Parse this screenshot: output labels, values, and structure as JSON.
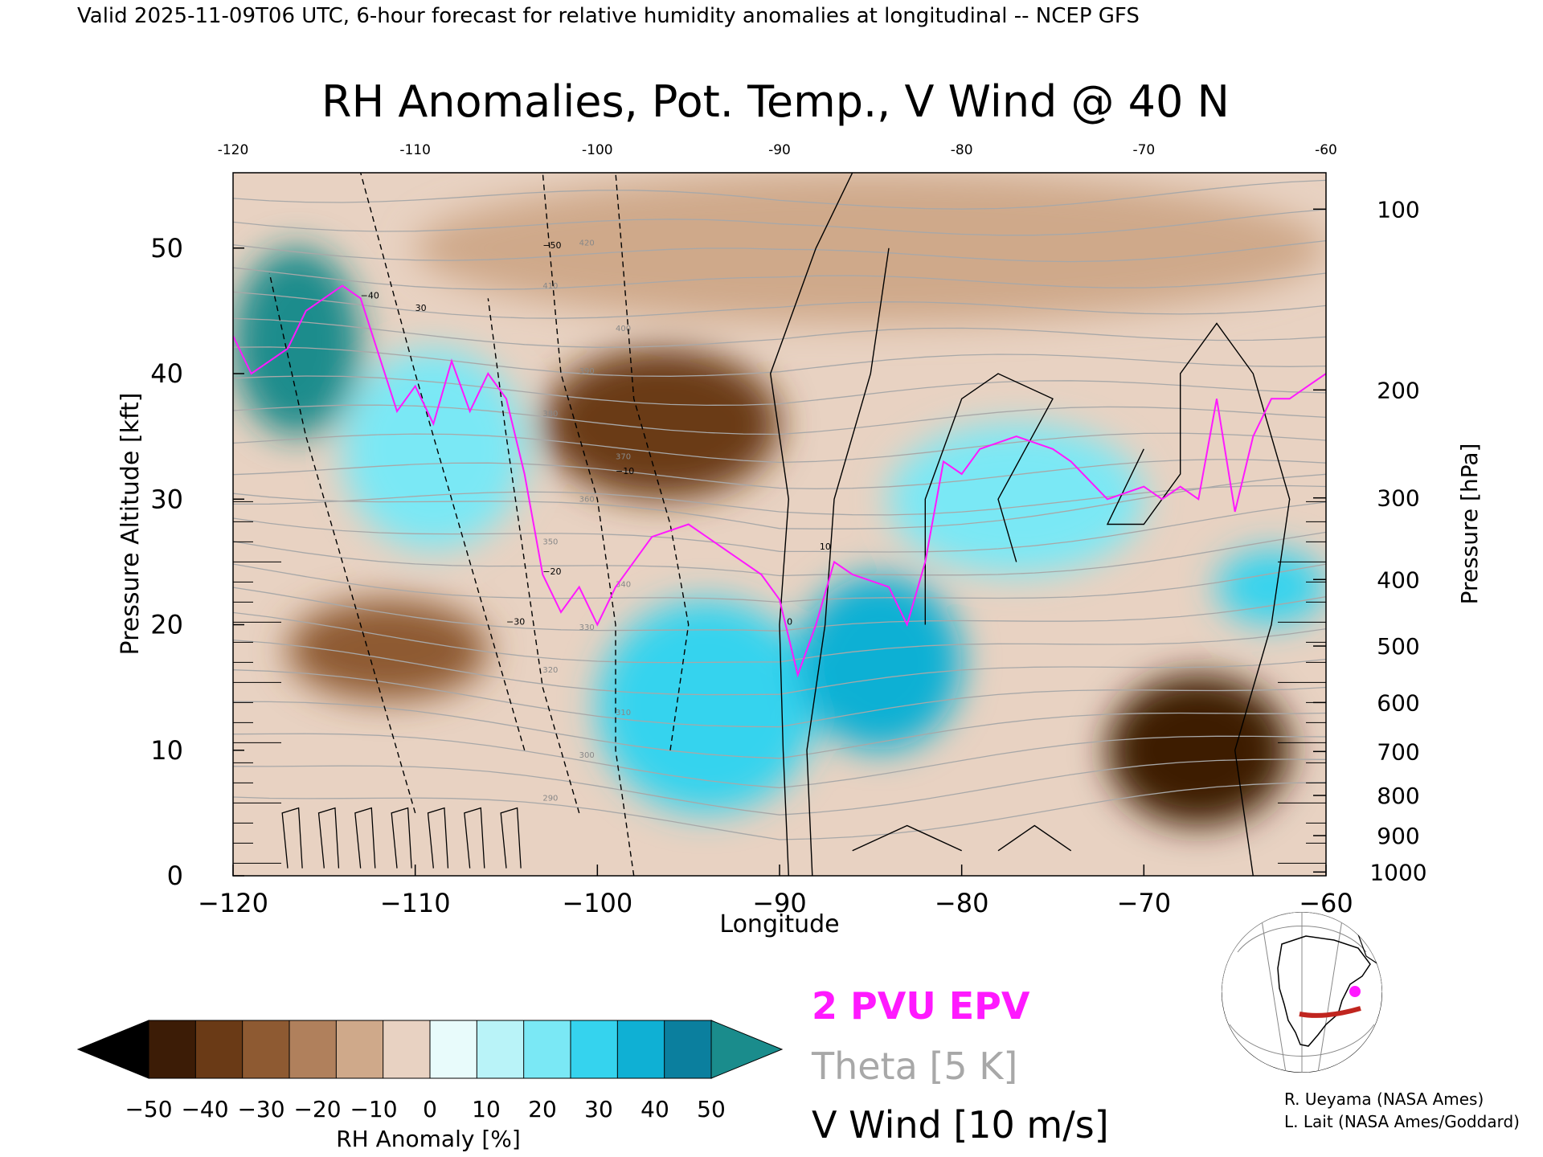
{
  "header": {
    "valid_line": "Valid 2025-11-09T06 UTC, 6-hour forecast for relative humidity anomalies at longitudinal -- NCEP GFS",
    "title": "RH Anomalies, Pot. Temp., V Wind @ 40 N"
  },
  "chart_data": {
    "type": "heatmap",
    "title": "RH Anomalies, Pot. Temp., V Wind @ 40 N",
    "xlabel": "Longitude",
    "ylabel": "Pressure Altitude [kft]",
    "y2label": "Pressure [hPa]",
    "xlim": [
      -120,
      -60
    ],
    "ylim": [
      0,
      56
    ],
    "x_ticks": [
      -120,
      -110,
      -100,
      -90,
      -80,
      -70,
      -60
    ],
    "x_tick_labels": [
      "−120",
      "−110",
      "−100",
      "−90",
      "−80",
      "−70",
      "−60"
    ],
    "y_ticks": [
      0,
      10,
      20,
      30,
      40,
      50
    ],
    "y_tick_labels": [
      "0",
      "10",
      "20",
      "30",
      "40",
      "50"
    ],
    "pressure_ticks": [
      {
        "label": "100",
        "kft": 53.1
      },
      {
        "label": "200",
        "kft": 38.7
      },
      {
        "label": "300",
        "kft": 30.1
      },
      {
        "label": "400",
        "kft": 23.6
      },
      {
        "label": "500",
        "kft": 18.3
      },
      {
        "label": "600",
        "kft": 13.8
      },
      {
        "label": "700",
        "kft": 9.9
      },
      {
        "label": "800",
        "kft": 6.4
      },
      {
        "label": "900",
        "kft": 3.2
      },
      {
        "label": "1000",
        "kft": 0.3
      }
    ],
    "colorbar": {
      "label": "RH Anomaly [%]",
      "ticks": [
        "−50",
        "−40",
        "−30",
        "−20",
        "−10",
        "0",
        "10",
        "20",
        "30",
        "40",
        "50"
      ],
      "colors": [
        "#3c1c06",
        "#6a3a16",
        "#8e5a32",
        "#b0805c",
        "#cfa98a",
        "#e8d2c2",
        "#e8fbfb",
        "#b9f3f8",
        "#7ae8f5",
        "#35d3ee",
        "#0fb0d4",
        "#0b7f9e"
      ],
      "under_color": "#000000",
      "over_color": "#1a8c8c"
    },
    "heatmap_regions": [
      {
        "lon": [
          -120,
          -113
        ],
        "kft": [
          35,
          50
        ],
        "rh": 50
      },
      {
        "lon": [
          -114,
          -104
        ],
        "kft": [
          26,
          42
        ],
        "rh": 25
      },
      {
        "lon": [
          -100,
          -88
        ],
        "kft": [
          5,
          22
        ],
        "rh": 30
      },
      {
        "lon": [
          -89,
          -80
        ],
        "kft": [
          10,
          24
        ],
        "rh": 40
      },
      {
        "lon": [
          -84,
          -70
        ],
        "kft": [
          24,
          36
        ],
        "rh": 20
      },
      {
        "lon": [
          -66,
          -60
        ],
        "kft": [
          20,
          26
        ],
        "rh": 30
      },
      {
        "lon": [
          -117,
          -106
        ],
        "kft": [
          14,
          22
        ],
        "rh": -30
      },
      {
        "lon": [
          -103,
          -90
        ],
        "kft": [
          30,
          42
        ],
        "rh": -35
      },
      {
        "lon": [
          -72,
          -62
        ],
        "kft": [
          4,
          16
        ],
        "rh": -45
      },
      {
        "lon": [
          -110,
          -60
        ],
        "kft": [
          44,
          56
        ],
        "rh": -10
      }
    ],
    "theta_contour_labels": [
      "290",
      "300",
      "310",
      "320",
      "330",
      "340",
      "350",
      "360",
      "370",
      "380",
      "390",
      "400",
      "410",
      "420"
    ],
    "v_wind_contour_labels": [
      "0",
      "10",
      "−10",
      "−20",
      "−30",
      "−40",
      "−50",
      "30"
    ],
    "series": [
      {
        "name": "2 PVU EPV",
        "x": [
          -120,
          -119,
          -117,
          -116,
          -114,
          -113,
          -111,
          -110,
          -109,
          -108,
          -107,
          -106,
          -105,
          -104,
          -103,
          -102,
          -101,
          -100,
          -99,
          -97,
          -95,
          -94,
          -93,
          -91,
          -90,
          -89,
          -88,
          -87,
          -86,
          -84,
          -83,
          -82,
          -81,
          -80,
          -79,
          -77,
          -75,
          -74,
          -72,
          -70,
          -69,
          -68,
          -67,
          -66,
          -65,
          -64,
          -63,
          -62,
          -61,
          -60
        ],
        "y": [
          43,
          40,
          42,
          45,
          47,
          46,
          37,
          39,
          36,
          41,
          37,
          40,
          38,
          32,
          24,
          21,
          23,
          20,
          23,
          27,
          28,
          27,
          26,
          24,
          22,
          16,
          20,
          25,
          24,
          23,
          20,
          25,
          33,
          32,
          34,
          35,
          34,
          33,
          30,
          31,
          30,
          31,
          30,
          38,
          29,
          35,
          38,
          38,
          39,
          40
        ]
      }
    ],
    "legend": [
      {
        "label": "2 PVU EPV",
        "color": "#ff19ff"
      },
      {
        "label": "Theta [5 K]",
        "color": "#a8a8a8"
      },
      {
        "label": "V Wind [10 m/s]",
        "color": "#000000"
      }
    ],
    "inset_map": {
      "latitude": 40,
      "lon_range": [
        -120,
        -60
      ],
      "line_color": "#c0251f",
      "marker_color": "#ff19ff"
    }
  },
  "credits": [
    "R. Ueyama (NASA Ames)",
    "L. Lait (NASA Ames/Goddard)"
  ]
}
